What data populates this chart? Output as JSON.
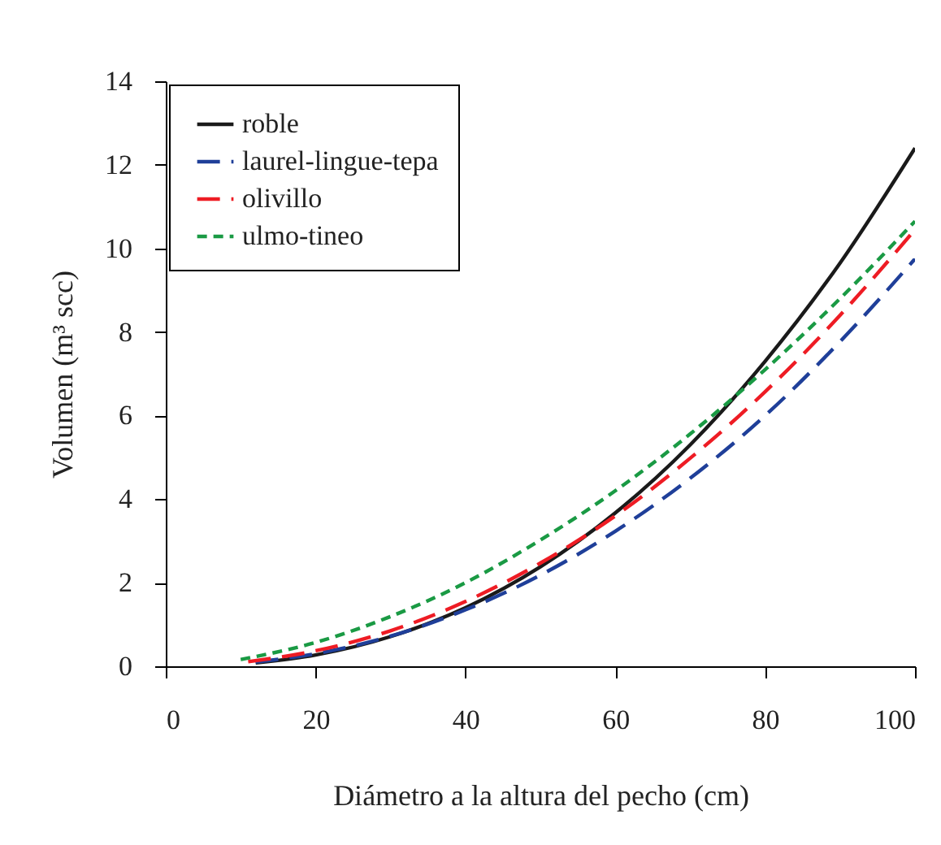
{
  "chart_data": {
    "type": "line",
    "xlabel": "Diámetro a la altura del pecho (cm)",
    "ylabel": "Volumen (m³ scc)",
    "xlim": [
      0,
      100
    ],
    "xticks": [
      0,
      20,
      40,
      60,
      80,
      100
    ],
    "ylim": [
      0,
      14
    ],
    "yticks": [
      0,
      2,
      4,
      6,
      8,
      10,
      12,
      14
    ],
    "grid": false,
    "legend": "top left",
    "marker": "none",
    "series": [
      {
        "name": "roble",
        "color": "#1a1a1a",
        "line_style": "solid",
        "x": [
          12,
          20,
          30,
          40,
          50,
          60,
          70,
          80,
          90,
          100
        ],
        "values": [
          0.08,
          0.27,
          0.71,
          1.4,
          2.38,
          3.67,
          5.3,
          7.3,
          9.65,
          12.4
        ]
      },
      {
        "name": "laurel-lingue-tepa",
        "color": "#1f3f99",
        "line_style": "dashed",
        "x": [
          12,
          20,
          30,
          40,
          50,
          60,
          70,
          80,
          90,
          100
        ],
        "values": [
          0.1,
          0.3,
          0.72,
          1.35,
          2.18,
          3.23,
          4.5,
          6.0,
          7.77,
          9.75
        ]
      },
      {
        "name": "olivillo",
        "color": "#ee1c24",
        "line_style": "dashed",
        "x": [
          11,
          20,
          30,
          40,
          50,
          60,
          70,
          80,
          90,
          100
        ],
        "values": [
          0.11,
          0.37,
          0.85,
          1.55,
          2.47,
          3.6,
          4.98,
          6.57,
          8.4,
          10.45
        ]
      },
      {
        "name": "ulmo-tineo",
        "color": "#1a9a44",
        "line_style": "dotted",
        "x": [
          10,
          20,
          30,
          40,
          50,
          60,
          70,
          80,
          90,
          100
        ],
        "values": [
          0.16,
          0.57,
          1.19,
          2.0,
          3.02,
          4.2,
          5.56,
          7.1,
          8.8,
          10.65
        ]
      }
    ]
  }
}
